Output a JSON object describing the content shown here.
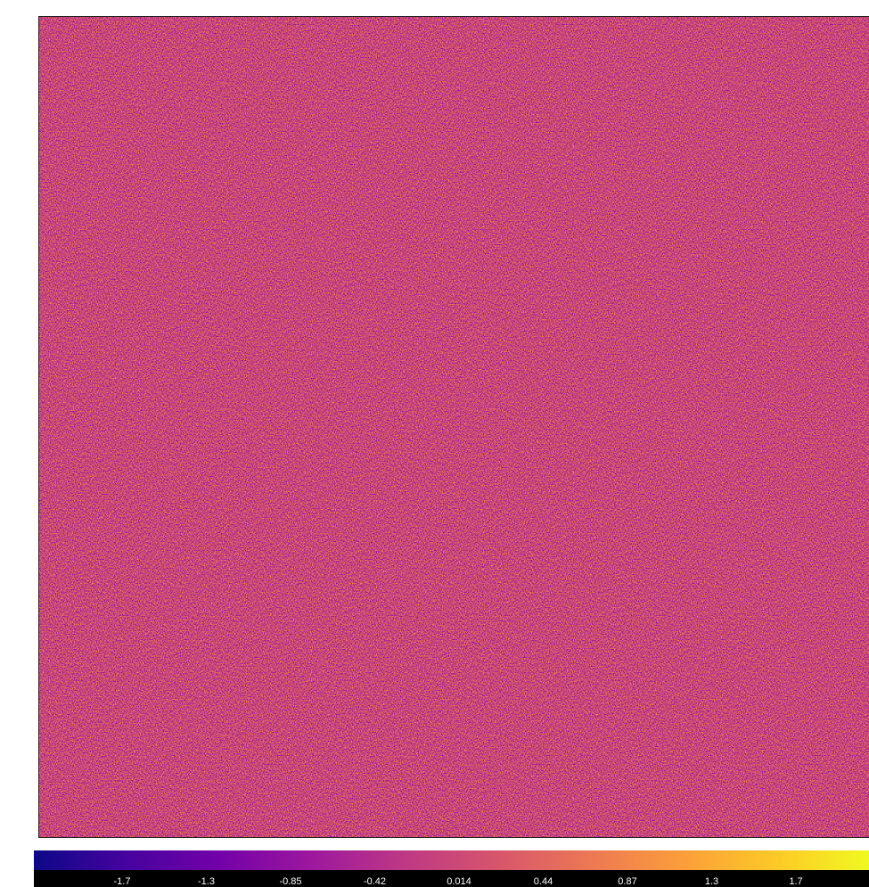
{
  "colorbar": {
    "ticks": [
      "-1.7",
      "-1.3",
      "-0.85",
      "-0.42",
      "0.014",
      "0.44",
      "0.87",
      "1.3",
      "1.7"
    ]
  }
}
